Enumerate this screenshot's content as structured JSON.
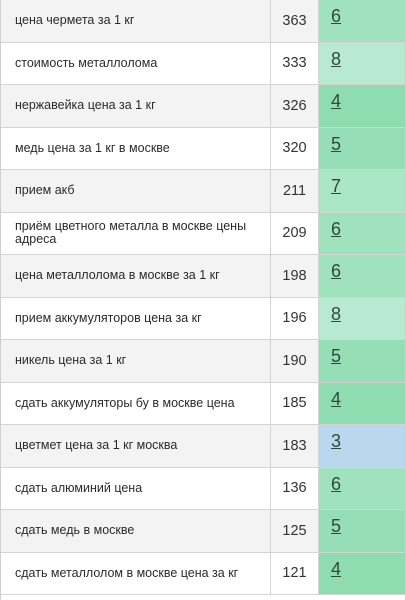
{
  "colors": {
    "score_green_dark": "#8fdcb0",
    "score_green_light": "#b3e8cc",
    "score_green": "#9fe2bd",
    "score_blue": "#b9d8ee"
  },
  "rows": [
    {
      "keyword": "цена чермета за 1 кг",
      "volume": "363",
      "score": "6",
      "color": "#9fe2bd"
    },
    {
      "keyword": "стоимость металлолома",
      "volume": "333",
      "score": "8",
      "color": "#b7ead0"
    },
    {
      "keyword": "нержавейка цена за 1 кг",
      "volume": "326",
      "score": "4",
      "color": "#8fdcb0"
    },
    {
      "keyword": "медь цена за 1 кг в москве",
      "volume": "320",
      "score": "5",
      "color": "#96deb5"
    },
    {
      "keyword": "прием акб",
      "volume": "211",
      "score": "7",
      "color": "#abe6c6"
    },
    {
      "keyword": "приём цветного металла в москве цены адреса",
      "volume": "209",
      "score": "6",
      "color": "#9fe2bd"
    },
    {
      "keyword": "цена металлолома в москве за 1 кг",
      "volume": "198",
      "score": "6",
      "color": "#9fe2bd"
    },
    {
      "keyword": "прием аккумуляторов цена за кг",
      "volume": "196",
      "score": "8",
      "color": "#b7ead0"
    },
    {
      "keyword": "никель цена за 1 кг",
      "volume": "190",
      "score": "5",
      "color": "#96deb5"
    },
    {
      "keyword": "сдать аккумуляторы бу в москве цена",
      "volume": "185",
      "score": "4",
      "color": "#8fdcb0"
    },
    {
      "keyword": "цветмет цена за 1 кг москва",
      "volume": "183",
      "score": "3",
      "color": "#b9d8ee"
    },
    {
      "keyword": "сдать алюминий цена",
      "volume": "136",
      "score": "6",
      "color": "#9fe2bd"
    },
    {
      "keyword": "сдать медь в москве",
      "volume": "125",
      "score": "5",
      "color": "#96deb5"
    },
    {
      "keyword": "сдать металлолом в москве цена за кг",
      "volume": "121",
      "score": "4",
      "color": "#8fdcb0"
    }
  ]
}
